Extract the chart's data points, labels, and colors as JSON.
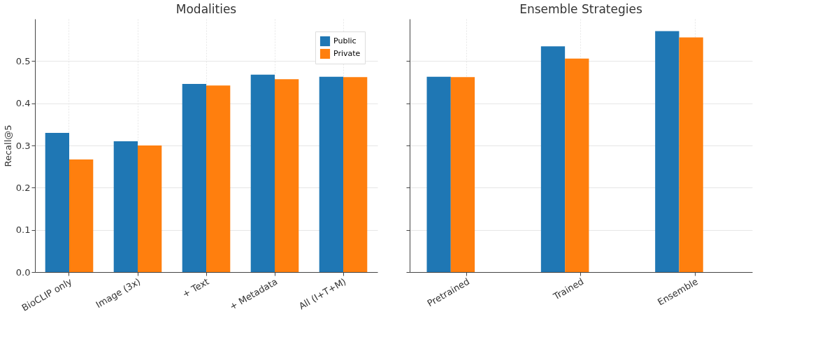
{
  "chart_data": [
    {
      "type": "bar",
      "title": "Modalities",
      "ylabel": "Recall@5",
      "categories": [
        "BioCLIP only",
        "Image (3x)",
        "+ Text",
        "+ Metadata",
        "All (I+T+M)"
      ],
      "series": [
        {
          "name": "Public",
          "color": "#1f77b4",
          "values": [
            0.33,
            0.31,
            0.446,
            0.468,
            0.463
          ]
        },
        {
          "name": "Private",
          "color": "#ff7f0e",
          "values": [
            0.267,
            0.3,
            0.442,
            0.457,
            0.462
          ]
        }
      ],
      "ylim": [
        0,
        0.6
      ],
      "yticks": [
        {
          "value": 0,
          "label": "0.0"
        },
        0.1,
        0.2,
        0.3,
        0.4,
        0.5
      ],
      "grid": true,
      "legend": "top right"
    },
    {
      "type": "bar",
      "title": "Ensemble Strategies",
      "categories": [
        "Pretrained",
        "Trained",
        "Ensemble"
      ],
      "series": [
        {
          "color": "#1f77b4",
          "values": [
            0.463,
            0.535,
            0.571
          ]
        },
        {
          "color": "#ff7f0e",
          "values": [
            0.462,
            0.506,
            0.556
          ]
        }
      ],
      "ylim": [
        0,
        0.6
      ],
      "yticks": [
        0,
        0.1,
        0.2,
        0.3,
        0.4,
        0.5
      ],
      "grid": true,
      "tick_labels": "x"
    }
  ]
}
